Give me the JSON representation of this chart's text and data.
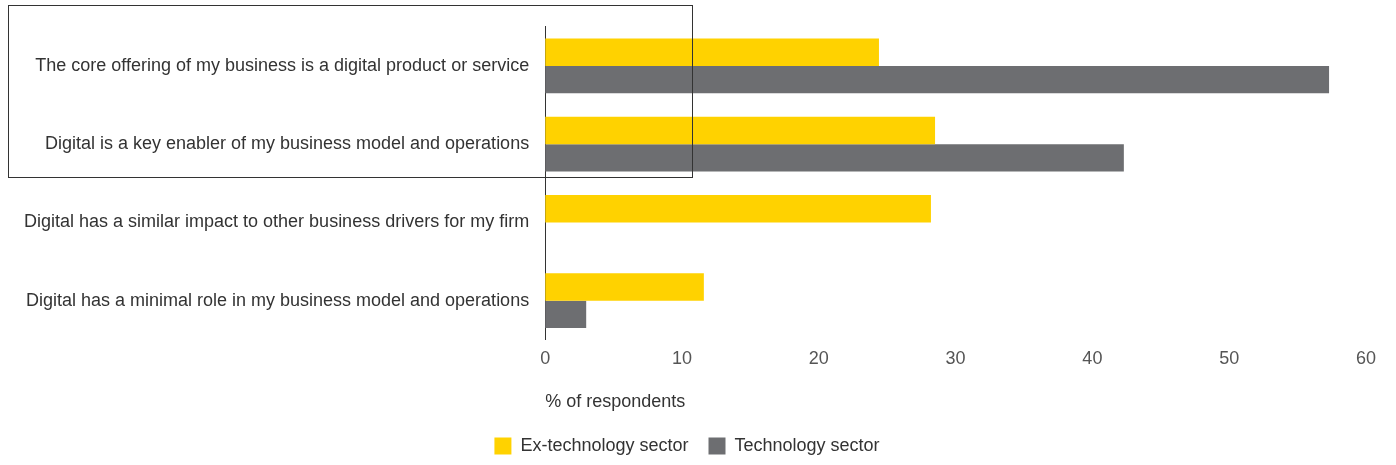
{
  "chart_data": {
    "type": "bar",
    "orientation": "horizontal",
    "categories": [
      "The core offering of my business is a digital product or service",
      "Digital is a key enabler of my business model and operations",
      "Digital has a similar impact to other business drivers for my firm",
      "Digital has a minimal role in my business model and operations"
    ],
    "series": [
      {
        "name": "Ex-technology sector",
        "color": "#ffd200",
        "values": [
          24.4,
          28.5,
          28.2,
          11.6
        ]
      },
      {
        "name": "Technology sector",
        "color": "#6d6e71",
        "values": [
          57.3,
          42.3,
          null,
          3.0
        ]
      }
    ],
    "xlabel": "% of respondents",
    "xlim": [
      0,
      60
    ],
    "xticks": [
      0,
      10,
      20,
      30,
      40,
      50,
      60
    ],
    "grid": false,
    "legend": "bottom"
  }
}
